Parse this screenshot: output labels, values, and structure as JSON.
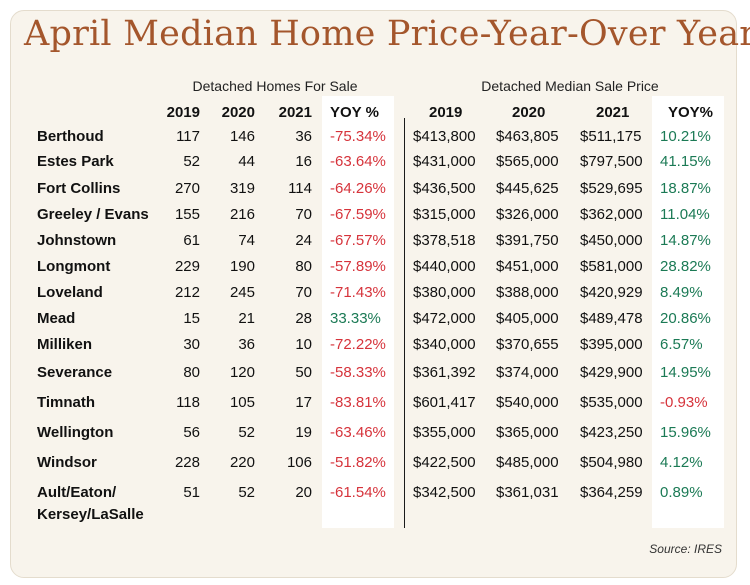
{
  "title": "April Median Home Price-Year-Over Year",
  "groups": {
    "left": "Detached Homes For Sale",
    "right": "Detached Median Sale Price"
  },
  "headers": {
    "left": [
      "2019",
      "2020",
      "2021",
      "YOY %"
    ],
    "right": [
      "2019",
      "2020",
      "2021",
      "YOY%"
    ]
  },
  "rows": [
    {
      "city": "Berthoud",
      "h2019": "117",
      "h2020": "146",
      "h2021": "36",
      "hyoy": "-75.34%",
      "p2019": "$413,800",
      "p2020": "$463,805",
      "p2021": "$511,175",
      "pyoy": "10.21%"
    },
    {
      "city": "Estes Park",
      "h2019": "52",
      "h2020": "44",
      "h2021": "16",
      "hyoy": "-63.64%",
      "p2019": "$431,000",
      "p2020": "$565,000",
      "p2021": "$797,500",
      "pyoy": "41.15%"
    },
    {
      "city": "Fort Collins",
      "h2019": "270",
      "h2020": "319",
      "h2021": "114",
      "hyoy": "-64.26%",
      "p2019": "$436,500",
      "p2020": "$445,625",
      "p2021": "$529,695",
      "pyoy": "18.87%"
    },
    {
      "city": "Greeley / Evans",
      "h2019": "155",
      "h2020": "216",
      "h2021": "70",
      "hyoy": "-67.59%",
      "p2019": "$315,000",
      "p2020": "$326,000",
      "p2021": "$362,000",
      "pyoy": "11.04%"
    },
    {
      "city": "Johnstown",
      "h2019": "61",
      "h2020": "74",
      "h2021": "24",
      "hyoy": "-67.57%",
      "p2019": "$378,518",
      "p2020": "$391,750",
      "p2021": "$450,000",
      "pyoy": "14.87%"
    },
    {
      "city": "Longmont",
      "h2019": "229",
      "h2020": "190",
      "h2021": "80",
      "hyoy": "-57.89%",
      "p2019": "$440,000",
      "p2020": "$451,000",
      "p2021": "$581,000",
      "pyoy": "28.82%"
    },
    {
      "city": "Loveland",
      "h2019": "212",
      "h2020": "245",
      "h2021": "70",
      "hyoy": "-71.43%",
      "p2019": "$380,000",
      "p2020": "$388,000",
      "p2021": "$420,929",
      "pyoy": "8.49%"
    },
    {
      "city": "Mead",
      "h2019": "15",
      "h2020": "21",
      "h2021": "28",
      "hyoy": "33.33%",
      "p2019": "$472,000",
      "p2020": "$405,000",
      "p2021": "$489,478",
      "pyoy": "20.86%"
    },
    {
      "city": "Milliken",
      "h2019": "30",
      "h2020": "36",
      "h2021": "10",
      "hyoy": "-72.22%",
      "p2019": "$340,000",
      "p2020": "$370,655",
      "p2021": "$395,000",
      "pyoy": "6.57%"
    },
    {
      "city": "Severance",
      "h2019": "80",
      "h2020": "120",
      "h2021": "50",
      "hyoy": "-58.33%",
      "p2019": "$361,392",
      "p2020": "$374,000",
      "p2021": "$429,900",
      "pyoy": "14.95%"
    },
    {
      "city": "Timnath",
      "h2019": "118",
      "h2020": "105",
      "h2021": "17",
      "hyoy": "-83.81%",
      "p2019": "$601,417",
      "p2020": "$540,000",
      "p2021": "$535,000",
      "pyoy": "-0.93%"
    },
    {
      "city": "Wellington",
      "h2019": "56",
      "h2020": "52",
      "h2021": "19",
      "hyoy": "-63.46%",
      "p2019": "$355,000",
      "p2020": "$365,000",
      "p2021": "$423,250",
      "pyoy": "15.96%"
    },
    {
      "city": "Windsor",
      "h2019": "228",
      "h2020": "220",
      "h2021": "106",
      "hyoy": "-51.82%",
      "p2019": "$422,500",
      "p2020": "$485,000",
      "p2021": "$504,980",
      "pyoy": "4.12%"
    },
    {
      "city": "Ault/Eaton/",
      "city2": "Kersey/LaSalle",
      "h2019": "51",
      "h2020": "52",
      "h2021": "20",
      "hyoy": "-61.54%",
      "p2019": "$342,500",
      "p2020": "$361,031",
      "p2021": "$364,259",
      "pyoy": "0.89%"
    }
  ],
  "source": "Source: IRES",
  "colors": {
    "title": "#a4562c",
    "background": "#f8f4ec",
    "negative": "#d6333b",
    "positive": "#1b7a55"
  }
}
